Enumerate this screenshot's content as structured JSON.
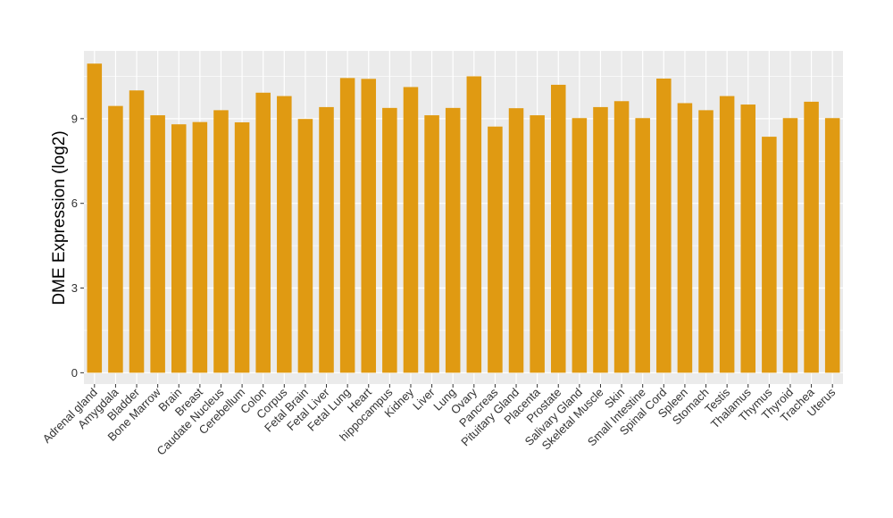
{
  "chart_data": {
    "type": "bar",
    "ylabel": "DME Expression (log2)",
    "xlabel": "",
    "ylim": [
      -0.4,
      11.4
    ],
    "yticks": [
      0,
      3,
      6,
      9
    ],
    "grid": true,
    "colors": {
      "bar": "#E09A12",
      "panel": "#EBEBEB",
      "grid": "#FFFFFF"
    },
    "categories": [
      "Adrenal gland",
      "Amygdala",
      "Bladder",
      "Bone Marrow",
      "Brain",
      "Breast",
      "Caudate Nucleus",
      "Cerebellum",
      "Colon",
      "Corpus",
      "Fetal Brain",
      "Fetal Liver",
      "Fetal Lung",
      "Heart",
      "hippocampus",
      "Kidney",
      "Liver",
      "Lung",
      "Ovary",
      "Pancreas",
      "Pituitary Gland",
      "Placenta",
      "Prostate",
      "Salivary Gland",
      "Skeletal Muscle",
      "Skin",
      "Small Intestine",
      "Spinal Cord",
      "Spleen",
      "Stomach",
      "Testis",
      "Thalamus",
      "Thymus",
      "Thyroid",
      "Trachea",
      "Uterus"
    ],
    "values": [
      10.95,
      9.45,
      10.0,
      9.12,
      8.8,
      8.88,
      9.3,
      8.87,
      9.92,
      9.8,
      8.99,
      9.41,
      10.44,
      10.41,
      9.38,
      10.12,
      9.12,
      9.38,
      10.5,
      8.72,
      9.37,
      9.12,
      10.2,
      9.02,
      9.41,
      9.62,
      9.02,
      10.42,
      9.55,
      9.3,
      9.8,
      9.5,
      8.36,
      9.02,
      9.6,
      9.02
    ]
  }
}
